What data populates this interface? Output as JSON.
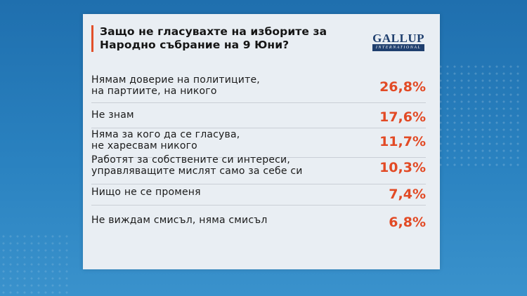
{
  "title": "Защо не гласувахте на изборите за\nНародно събрание на 9 Юни?",
  "logo": {
    "main": "GALLUP",
    "sub": "INTERNATIONAL"
  },
  "colors": {
    "accent": "#e2502a",
    "value": "#e24a25",
    "card": "#e9eef3",
    "background": "#2a82c0"
  },
  "chart_data": {
    "type": "table",
    "title": "Защо не гласувахте на изборите за Народно събрание на 9 Юни?",
    "rows": [
      {
        "label": "Нямам доверие на политиците,\nна партиите, на никого",
        "value": "26,8%",
        "number": 26.8
      },
      {
        "label": "Не знам",
        "value": "17,6%",
        "number": 17.6
      },
      {
        "label": "Няма за кого да се гласува,\nне харесвам никого",
        "value": "11,7%",
        "number": 11.7
      },
      {
        "label": "Работят за собствените си интереси,\nуправляващите мислят само за себе си",
        "value": "10,3%",
        "number": 10.3
      },
      {
        "label": "Нищо не се променя",
        "value": "7,4%",
        "number": 7.4
      },
      {
        "label": "Не виждам смисъл, няма смисъл",
        "value": "6,8%",
        "number": 6.8
      }
    ]
  }
}
